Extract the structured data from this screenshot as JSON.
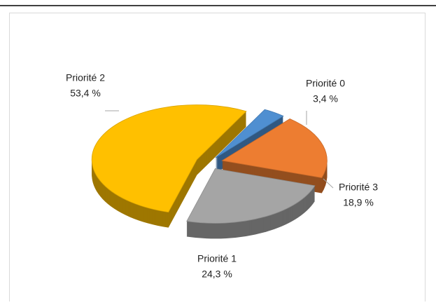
{
  "chart_data": {
    "type": "pie",
    "categories": [
      "Priorité 0",
      "Priorité 3",
      "Priorité 1",
      "Priorité 2"
    ],
    "values": [
      3.4,
      18.9,
      24.3,
      53.4
    ],
    "value_labels": [
      "3,4 %",
      "18,9 %",
      "24,3 %",
      "53,4 %"
    ],
    "colors": [
      "#4f8fd1",
      "#ed7d31",
      "#a5a5a5",
      "#ffc000"
    ]
  }
}
